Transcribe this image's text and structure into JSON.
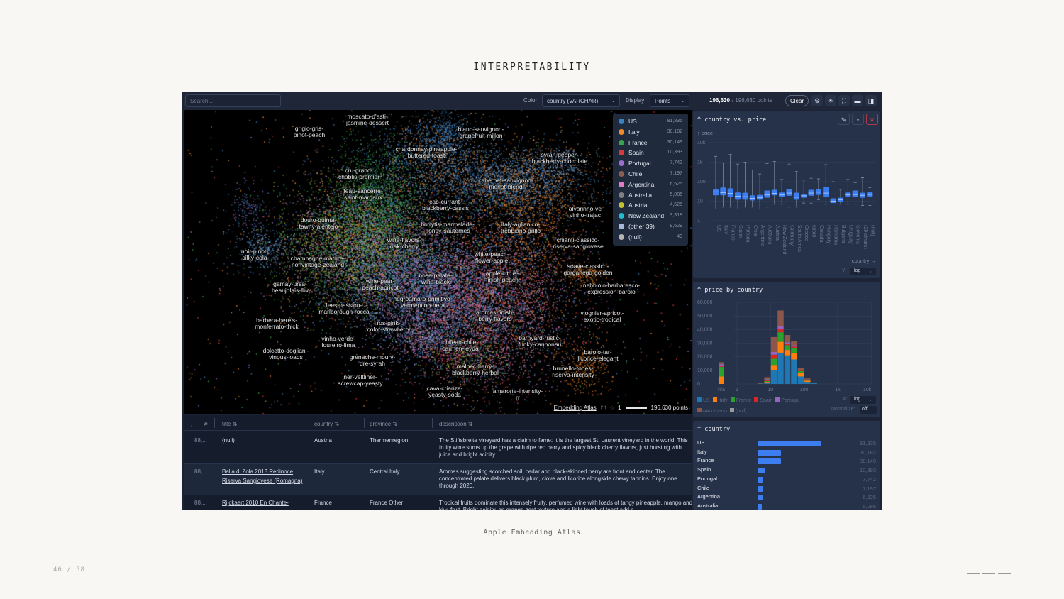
{
  "slide": {
    "title": "INTERPRETABILITY",
    "caption": "Apple Embedding Atlas",
    "page": "46 / 58"
  },
  "toolbar": {
    "search_placeholder": "Search...",
    "color_label": "Color",
    "color_value": "country (VARCHAR)",
    "display_label": "Display",
    "display_value": "Points",
    "points_selected": "196,630",
    "points_total": "/ 196,630 points",
    "clear_label": "Clear",
    "icons": [
      "gear-icon",
      "sun-icon",
      "embedding-view-icon",
      "table-view-icon",
      "sidebar-icon"
    ]
  },
  "colors": {
    "US": "#1f77b4",
    "Italy": "#ff7f0e",
    "France": "#2ca02c",
    "Spain": "#d62728",
    "Portugal": "#9467bd",
    "Chile": "#8c564b",
    "Argentina": "#e377c2",
    "Australia": "#7f7f7f",
    "Austria": "#bcbd22",
    "New Zealand": "#17becf",
    "other": "#aec7e8",
    "null": "#b0b0b0",
    "accent": "#3c7ef0"
  },
  "legend": [
    {
      "name": "US",
      "count": "81,835",
      "color": "#3b82c4"
    },
    {
      "name": "Italy",
      "count": "30,182",
      "color": "#f28a2e"
    },
    {
      "name": "France",
      "count": "30,149",
      "color": "#3aa64a"
    },
    {
      "name": "Spain",
      "count": "10,393",
      "color": "#d63a3a"
    },
    {
      "name": "Portugal",
      "count": "7,742",
      "color": "#9a6fcd"
    },
    {
      "name": "Chile",
      "count": "7,197",
      "color": "#8c5e4e"
    },
    {
      "name": "Argentina",
      "count": "6,525",
      "color": "#e07cc3"
    },
    {
      "name": "Australia",
      "count": "5,086",
      "color": "#808080"
    },
    {
      "name": "Austria",
      "count": "4,525",
      "color": "#c2c22e"
    },
    {
      "name": "New Zealand",
      "count": "3,318",
      "color": "#23bccf"
    },
    {
      "name": "(other 39)",
      "count": "9,629",
      "color": "#a8b8d8"
    },
    {
      "name": "(null)",
      "count": "49",
      "color": "#b5b5b5"
    }
  ],
  "map": {
    "labels": [
      "moscato-d'asti-\njasmine-dessert",
      "grigio-gris-\npinot-peach",
      "blanc-sauvignon-\ngrapefruit-millon",
      "chardonnay-pineapple-\nbuttered-toast",
      "syrah-pepper-\nblackberry-chocolate",
      "cru-grand-\nchablis-premier",
      "cabernet-sauvignon-\nmerlot-blend",
      "teau-sancerre-\nsaint-margaux",
      "cab-currant-\nblackberry-cassis",
      "alvarinho-ve\nvinho-trajac",
      "douro-quinta-\ntawny-alentejo",
      "botrytis-marmalade-\nhoney-sauternes",
      "italy-aglianico-\ntrebbiano-grillo",
      "chianti-classico-\nriserva-sangiovese",
      "wine-flavors-\noak-cherry",
      "noir-pinot-\nsilky-cola",
      "white-peach-\nflower-apple",
      "champagne-mature-\nnonvintage-zealand",
      "soave-classico-\ngarganega-golden",
      "apple-citrus-\nfinish-peach",
      "nose-palate-\nwine-black",
      "wine-pear-\npeach-apricot",
      "gamay-ursa-\nbeaujolais-lbv",
      "nebbiolo-barbaresco-\nexpression-barolo",
      "negroamaro-primitivo-\nvermentino-nera",
      "lees-passion-\nmarlborough-rocca",
      "viognier-apricot-\nexotic-tropical",
      "aromas-finish-\nberry-flavors",
      "barbera-here's-\nmonferrato-thick",
      "ros-pink-\ncolor-strawberry",
      "barnyard-rustic-\nfunky-cannonau",
      "vinho-verde-\nloureiro-lima",
      "chilean-chile-\ncarmen-leyda",
      "dolcetto-dogliani-\nvinous-loads",
      "barolo-tar-\nlicorice-elegant",
      "grenache-mourv-\ndre-syrah",
      "malbec-berry-\nblackberry-herbal",
      "brunello-tones-\nriserva-intensity",
      "ner-veltliner-\nscrewcap-yeasty",
      "cava-crianza-\nyeasty-soda",
      "amarone-intensity-\nrr"
    ],
    "footer_link": "Embedding Atlas",
    "scale_label": "1",
    "points_label": "196,630 points"
  },
  "table": {
    "columns": [
      "#",
      "title",
      "country",
      "province",
      "description"
    ],
    "rows": [
      {
        "num": "88,...",
        "title": "(null)",
        "country": "Austria",
        "province": "Thermenregion",
        "description": "The Stiftsbreite vineyard has a claim to fame: It is the largest St. Laurent vineyard in the world. This fruity wine sums up the grape with ripe red berry and spicy black cherry flavors, just bursting with juice and bright acidity."
      },
      {
        "num": "88,...",
        "title": "Balia di Zola 2013 Redinoce Riserva Sangiovese (Romagna)",
        "country": "Italy",
        "province": "Central Italy",
        "description": "Aromas suggesting scorched soil, cedar and black-skinned berry are front and center. The concentrated palate delivers black plum, clove and licorice alongside chewy tannins. Enjoy one through 2020."
      },
      {
        "num": "88,...",
        "title": "Rijckaert 2010 En Chante-",
        "country": "France",
        "province": "France Other",
        "description": "Tropical fruits dominate this intensely fruity, perfumed wine with loads of tangy pineapple, mango and kiwi-fruit. Bright acidity, an orange zest texture and a light touch of toast add a"
      }
    ]
  },
  "panels": {
    "boxplot": {
      "title": "country vs. price",
      "y_axis_label": "↑ price",
      "x_axis_label": "country →",
      "y_scale_label": "Y:",
      "y_scale": "log"
    },
    "histogram": {
      "title": "price by country",
      "x_scale_label": "X:",
      "x_scale": "log",
      "normalize_label": "Normalize:",
      "normalize": "off"
    },
    "country": {
      "title": "country"
    }
  },
  "chart_data": [
    {
      "type": "boxplot",
      "title": "country vs. price",
      "xlabel": "country",
      "ylabel": "price",
      "yscale": "log",
      "ylim": [
        1,
        10000
      ],
      "yticks": [
        "1",
        "10",
        "100",
        "1k",
        "10k"
      ],
      "categories": [
        "US",
        "Italy",
        "France",
        "Spain",
        "Portugal",
        "Chile",
        "Argentina",
        "Australia",
        "Austria",
        "New Zealand",
        "Germany",
        "South Africa",
        "Greece",
        "Israel",
        "Canada",
        "Hungary",
        "Romania",
        "Bulgaria",
        "Uruguay",
        "Slovenia",
        "(29 others)",
        "(null)"
      ],
      "boxes": [
        [
          4,
          20,
          30,
          40,
          2000
        ],
        [
          5,
          20,
          27,
          50,
          900
        ],
        [
          5,
          17,
          25,
          45,
          2500
        ],
        [
          4,
          12,
          18,
          28,
          800
        ],
        [
          5,
          12,
          17,
          27,
          1000
        ],
        [
          5,
          11,
          14,
          20,
          400
        ],
        [
          4,
          12,
          15,
          21,
          250
        ],
        [
          5,
          15,
          21,
          35,
          850
        ],
        [
          7,
          20,
          25,
          38,
          1100
        ],
        [
          7,
          17,
          21,
          28,
          130
        ],
        [
          5,
          19,
          26,
          42,
          800
        ],
        [
          5,
          12,
          16,
          27,
          330
        ],
        [
          8,
          15,
          19,
          22,
          120
        ],
        [
          8,
          19,
          26,
          38,
          150
        ],
        [
          12,
          21,
          29,
          40,
          140
        ],
        [
          7,
          16,
          26,
          52,
          750
        ],
        [
          4,
          8,
          10,
          14,
          100
        ],
        [
          7,
          9,
          12,
          15,
          40
        ],
        [
          7,
          17,
          21,
          28,
          130
        ],
        [
          7,
          16,
          22,
          35,
          90
        ],
        [
          6,
          15,
          20,
          27,
          160
        ],
        [
          6,
          17,
          22,
          29,
          50
        ]
      ],
      "box_fields": [
        "min",
        "q1",
        "median",
        "q3",
        "max"
      ]
    },
    {
      "type": "bar",
      "stacked": true,
      "title": "price by country",
      "xscale": "log",
      "xlim": [
        1,
        10000
      ],
      "xticks": [
        "n/a",
        "1",
        "10",
        "100",
        "1k",
        "10k"
      ],
      "ylim": [
        0,
        60000
      ],
      "yticks": [
        "0",
        "10,000",
        "20,000",
        "30,000",
        "40,000",
        "50,000",
        "60,000"
      ],
      "bins": [
        "n/a",
        "4-6.3",
        "6.3-10",
        "10-15.8",
        "15.8-25",
        "25-40",
        "40-63",
        "63-100",
        "100-158",
        "158-250"
      ],
      "series": [
        {
          "name": "US",
          "color": "#1f77b4",
          "values": [
            0,
            200,
            1000,
            10000,
            23000,
            21000,
            18000,
            5500,
            1500,
            500
          ]
        },
        {
          "name": "Italy",
          "color": "#ff7f0e",
          "values": [
            5500,
            50,
            500,
            4000,
            8000,
            4000,
            5000,
            2500,
            1000,
            200
          ]
        },
        {
          "name": "France",
          "color": "#2ca02c",
          "values": [
            7000,
            50,
            700,
            4500,
            7000,
            3500,
            3500,
            1500,
            800,
            200
          ]
        },
        {
          "name": "Spain",
          "color": "#d62728",
          "values": [
            500,
            50,
            500,
            3000,
            2500,
            1000,
            1000,
            500,
            200,
            50
          ]
        },
        {
          "name": "Portugal",
          "color": "#9467bd",
          "values": [
            1500,
            50,
            700,
            2000,
            2000,
            1000,
            1000,
            300,
            100,
            50
          ]
        },
        {
          "name": "(44 others)",
          "color": "#8c564b",
          "values": [
            1500,
            100,
            1600,
            11000,
            11500,
            5500,
            3000,
            1700,
            500,
            100
          ]
        },
        {
          "name": "(null)",
          "color": "#9a9a9a",
          "values": [
            0,
            0,
            0,
            0,
            0,
            0,
            0,
            0,
            0,
            0
          ]
        }
      ]
    },
    {
      "type": "bar",
      "orientation": "horizontal",
      "title": "country",
      "categories": [
        "US",
        "Italy",
        "France",
        "Spain",
        "Portugal",
        "Chile",
        "Argentina",
        "Australia"
      ],
      "values": [
        81835,
        30182,
        30149,
        10393,
        7742,
        7197,
        6525,
        5086
      ],
      "labels": [
        "81,835",
        "30,182",
        "30,149",
        "10,393",
        "7,742",
        "7,197",
        "6,525",
        "5,086"
      ]
    }
  ]
}
